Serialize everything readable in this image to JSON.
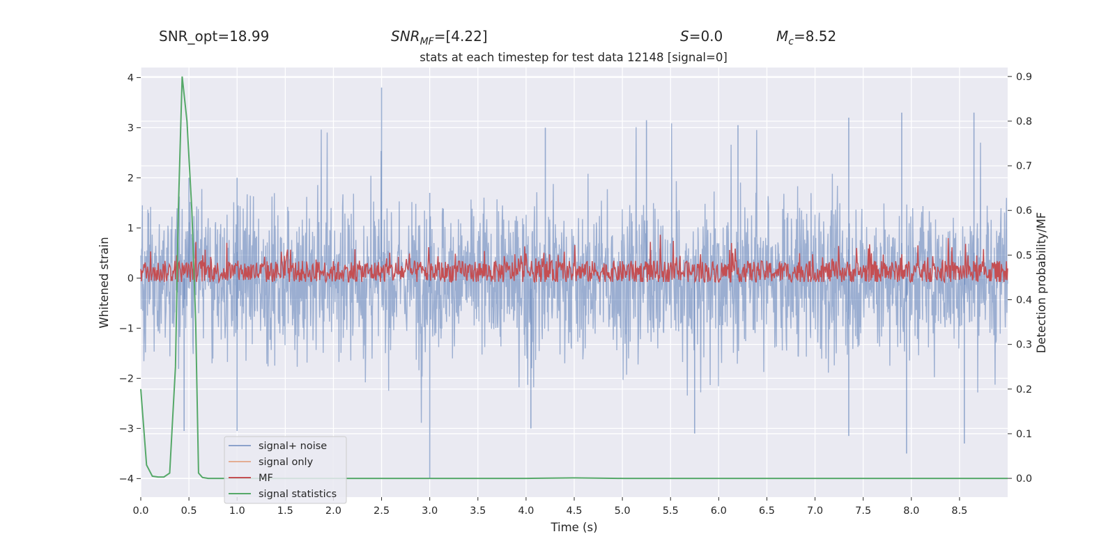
{
  "header_stats": {
    "snr_opt": "SNR_opt=18.99",
    "snr_mf_label": "SNR",
    "snr_mf_sub": "MF",
    "snr_mf_value": "=[4.22]",
    "s_label": "S",
    "s_value": "=0.0",
    "mc_label": "M",
    "mc_sub": "c",
    "mc_value": "=8.52"
  },
  "colors": {
    "plot_background": "#eaeaf2",
    "grid": "#ffffff",
    "signal_noise": "#4c72b0",
    "signal_only": "#dd8452",
    "mf": "#c44e52",
    "signal_statistics": "#55a868"
  },
  "chart_data": {
    "type": "line",
    "title": "stats at each timestep for test data 12148 [signal=0]",
    "xlabel": "Time (s)",
    "ylabel": "Whitened strain",
    "y2label": "Detection probability/MF",
    "xlim": [
      0.0,
      9.0
    ],
    "ylim": [
      -4.37,
      4.2
    ],
    "y2lim": [
      -0.042,
      0.92
    ],
    "grid": true,
    "legend_position": "lower-left",
    "x_ticks": [
      "0.0",
      "0.5",
      "1.0",
      "1.5",
      "2.0",
      "2.5",
      "3.0",
      "3.5",
      "4.0",
      "4.5",
      "5.0",
      "5.5",
      "6.0",
      "6.5",
      "7.0",
      "7.5",
      "8.0",
      "8.5"
    ],
    "y_ticks": [
      "−4",
      "−3",
      "−2",
      "−1",
      "0",
      "1",
      "2",
      "3",
      "4"
    ],
    "y2_ticks": [
      "0.0",
      "0.1",
      "0.2",
      "0.3",
      "0.4",
      "0.5",
      "0.6",
      "0.7",
      "0.8",
      "0.9"
    ],
    "series": [
      {
        "name": "signal+ noise",
        "axis": "left",
        "envelope_note_upper": [
          [
            0.0,
            1.6
          ],
          [
            0.5,
            2.0
          ],
          [
            1.0,
            2.0
          ],
          [
            2.5,
            3.8
          ],
          [
            3.0,
            1.7
          ],
          [
            4.2,
            3.0
          ],
          [
            5.25,
            3.15
          ],
          [
            6.2,
            3.05
          ],
          [
            7.35,
            3.2
          ],
          [
            7.9,
            3.3
          ],
          [
            8.65,
            3.3
          ],
          [
            9.0,
            1.7
          ]
        ],
        "envelope_note_lower": [
          [
            0.0,
            -1.6
          ],
          [
            0.45,
            -3.05
          ],
          [
            1.0,
            -3.05
          ],
          [
            3.0,
            -4.0
          ],
          [
            4.05,
            -3.0
          ],
          [
            5.75,
            -3.1
          ],
          [
            7.35,
            -3.15
          ],
          [
            7.95,
            -3.5
          ],
          [
            8.55,
            -3.3
          ],
          [
            9.0,
            -1.7
          ]
        ]
      },
      {
        "name": "signal only",
        "axis": "left",
        "values": []
      },
      {
        "name": "MF",
        "axis": "right",
        "baseline": 0.46,
        "range": [
          0.44,
          0.565
        ]
      },
      {
        "name": "signal statistics",
        "axis": "right",
        "x": [
          0.0,
          0.06,
          0.12,
          0.18,
          0.24,
          0.3,
          0.36,
          0.39,
          0.43,
          0.48,
          0.53,
          0.57,
          0.6,
          0.64,
          0.7,
          1.0,
          2.0,
          3.0,
          4.0,
          4.5,
          5.0,
          6.0,
          7.0,
          8.0,
          9.0
        ],
        "y": [
          0.2,
          0.03,
          0.005,
          0.003,
          0.003,
          0.012,
          0.25,
          0.6,
          0.9,
          0.8,
          0.6,
          0.35,
          0.012,
          0.002,
          0.0,
          0.0,
          0.0,
          0.0,
          0.0,
          0.001,
          0.0,
          0.0,
          0.0,
          0.0,
          0.0
        ]
      }
    ]
  }
}
